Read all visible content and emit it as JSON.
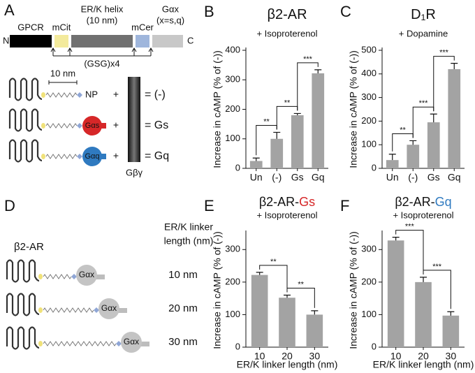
{
  "panel_letters": [
    "A",
    "B",
    "C",
    "D",
    "E",
    "F"
  ],
  "panel_a": {
    "construct": {
      "gpcr": "GPCR",
      "mcit": "mCit",
      "erk": "ER/K helix",
      "erk_len": "(10 nm)",
      "mcer": "mCer",
      "galpha": "Gαx",
      "galpha_note": "(x=s,q)",
      "n": "N",
      "c": "C",
      "linker": "(GSG)x4"
    },
    "scale": "10 nm",
    "plus": "+",
    "gbg": "Gβγ",
    "rows": [
      {
        "probe": "NP",
        "result": "= (-)",
        "color": "#111111"
      },
      {
        "probe": "Gαs",
        "result": "= Gs",
        "color": "#d62728"
      },
      {
        "probe": "Gαq",
        "result": "= Gq",
        "color": "#2f7ac0"
      }
    ]
  },
  "panel_d": {
    "receptor": "β2-AR",
    "header": [
      "ER/K linker",
      "length (nm)"
    ],
    "rows": [
      {
        "galpha": "Gαx",
        "length": "10 nm"
      },
      {
        "galpha": "Gαx",
        "length": "20 nm"
      },
      {
        "galpha": "Gαx",
        "length": "30 nm"
      }
    ]
  },
  "chart_data": [
    {
      "type": "bar",
      "title": "β2-AR",
      "subtitle": "+ Isoproterenol",
      "ylabel": "Increase in cAMP (% of (-))",
      "categories": [
        "Un",
        "(-)",
        "Gs",
        "Gq"
      ],
      "category_colors": [
        "#111111",
        "#111111",
        "#d62728",
        "#2f7ac0"
      ],
      "values": [
        25,
        100,
        180,
        322
      ],
      "errors": [
        10,
        22,
        6,
        12
      ],
      "color": "#a3a3a3",
      "ylim": [
        0,
        400
      ],
      "yticks": [
        0,
        100,
        200,
        300,
        400
      ],
      "significance": [
        {
          "pair": [
            "Un",
            "(-)"
          ],
          "label": "**"
        },
        {
          "pair": [
            "(-)",
            "Gs"
          ],
          "label": "**"
        },
        {
          "pair": [
            "Gs",
            "Gq"
          ],
          "label": "***"
        }
      ]
    },
    {
      "type": "bar",
      "title": "D₁R",
      "subtitle": "+ Dopamine",
      "ylabel": "Increase in cAMP (% of (-))",
      "categories": [
        "Un",
        "(-)",
        "Gs",
        "Gq"
      ],
      "category_colors": [
        "#111111",
        "#111111",
        "#d62728",
        "#2f7ac0"
      ],
      "values": [
        35,
        100,
        195,
        420
      ],
      "errors": [
        25,
        17,
        35,
        25
      ],
      "color": "#a3a3a3",
      "ylim": [
        0,
        500
      ],
      "yticks": [
        0,
        100,
        200,
        300,
        400,
        500
      ],
      "significance": [
        {
          "pair": [
            "Un",
            "(-)"
          ],
          "label": "**"
        },
        {
          "pair": [
            "(-)",
            "Gs"
          ],
          "label": "***"
        },
        {
          "pair": [
            "Gs",
            "Gq"
          ],
          "label": "***"
        }
      ]
    },
    {
      "type": "bar",
      "title": "β2-AR-",
      "title_highlight": {
        "text": "Gs",
        "color": "#d62728"
      },
      "subtitle": "+ Isoproterenol",
      "ylabel": "Increase in cAMP (% of (-))",
      "xlabel": "ER/K linker length (nm)",
      "categories": [
        10,
        20,
        30
      ],
      "values": [
        222,
        152,
        100
      ],
      "errors": [
        8,
        8,
        12
      ],
      "color": "#a3a3a3",
      "ylim": [
        0,
        350
      ],
      "yticks": [
        0,
        100,
        200,
        300
      ],
      "significance": [
        {
          "pair": [
            10,
            20
          ],
          "label": "**"
        },
        {
          "pair": [
            20,
            30
          ],
          "label": "**"
        }
      ]
    },
    {
      "type": "bar",
      "title": "β2-AR-",
      "title_highlight": {
        "text": "Gq",
        "color": "#2f7ac0"
      },
      "subtitle": "+ Isoproterenol",
      "ylabel": "Increase in cAMP (% of (-))",
      "xlabel": "ER/K linker length (nm)",
      "categories": [
        10,
        20,
        30
      ],
      "values": [
        328,
        200,
        97
      ],
      "errors": [
        10,
        15,
        12
      ],
      "color": "#a3a3a3",
      "ylim": [
        0,
        350
      ],
      "yticks": [
        0,
        100,
        200,
        300
      ],
      "significance": [
        {
          "pair": [
            10,
            20
          ],
          "label": "***"
        },
        {
          "pair": [
            20,
            30
          ],
          "label": "***"
        }
      ]
    }
  ]
}
